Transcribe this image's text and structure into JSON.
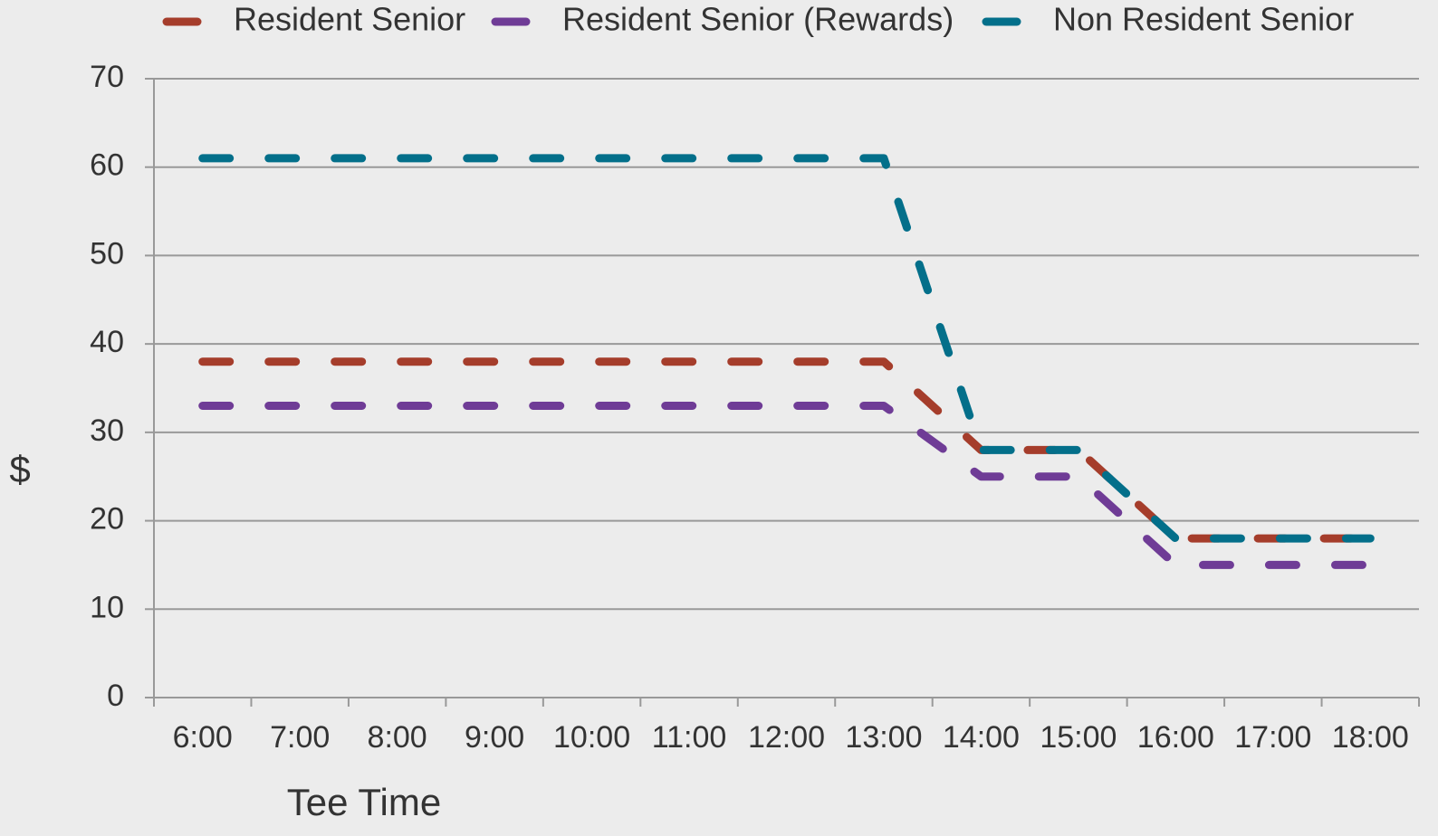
{
  "chart_data": {
    "type": "line",
    "x_label": "Tee Time",
    "y_label": "$",
    "categories": [
      "6:00",
      "7:00",
      "8:00",
      "9:00",
      "10:00",
      "11:00",
      "12:00",
      "13:00",
      "14:00",
      "15:00",
      "16:00",
      "17:00",
      "18:00"
    ],
    "series": [
      {
        "name": "Resident Senior",
        "color": "#a53d2b",
        "values": [
          38,
          38,
          38,
          38,
          38,
          38,
          38,
          38,
          28,
          28,
          18,
          18,
          18
        ]
      },
      {
        "name": "Resident Senior (Rewards)",
        "color": "#6f3c96",
        "values": [
          33,
          33,
          33,
          33,
          33,
          33,
          33,
          33,
          25,
          25,
          15,
          15,
          15
        ]
      },
      {
        "name": "Non Resident Senior",
        "color": "#036f8a",
        "values": [
          61,
          61,
          61,
          61,
          61,
          61,
          61,
          61,
          28,
          28,
          18,
          18,
          18
        ]
      }
    ],
    "ylim": [
      0,
      70
    ],
    "yticks": [
      0,
      10,
      20,
      30,
      40,
      50,
      60,
      70
    ],
    "grid": true,
    "legend": "top"
  }
}
